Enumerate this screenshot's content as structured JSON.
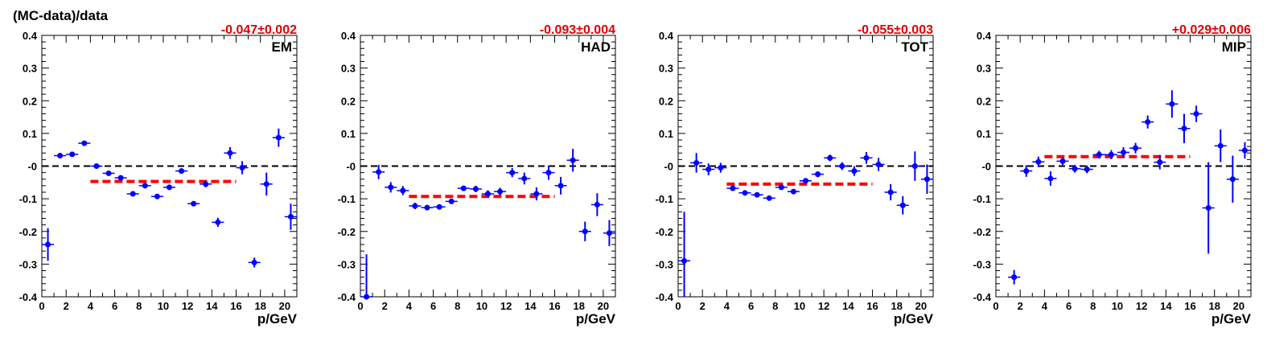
{
  "figure_ylabel": "(MC-data)/data",
  "chart_data": [
    {
      "type": "scatter",
      "panel_label": "EM",
      "fit_result": "-0.047±0.002",
      "xlabel": "p/GeV",
      "xlim": [
        0,
        21
      ],
      "ylim": [
        -0.4,
        0.4
      ],
      "x_ticks": [
        0,
        2,
        4,
        6,
        8,
        10,
        12,
        14,
        16,
        18,
        20
      ],
      "y_ticks": [
        -0.4,
        -0.3,
        -0.2,
        -0.1,
        0,
        0.1,
        0.2,
        0.3,
        0.4
      ],
      "y_tick_labels": [
        "-0.4",
        "-0.3",
        "-0.2",
        "-0.1",
        "-0",
        "0.1",
        "0.2",
        "0.3",
        "0.4"
      ],
      "reference_line": 0,
      "fit_line": {
        "x": [
          4,
          16
        ],
        "y": -0.047
      },
      "points": [
        {
          "x": 0.5,
          "y": -0.24,
          "err": 0.05
        },
        {
          "x": 1.5,
          "y": 0.032,
          "err": 0.006
        },
        {
          "x": 2.5,
          "y": 0.036,
          "err": 0.005
        },
        {
          "x": 3.5,
          "y": 0.07,
          "err": 0.004
        },
        {
          "x": 4.5,
          "y": 0.0,
          "err": 0.003
        },
        {
          "x": 5.5,
          "y": -0.022,
          "err": 0.004
        },
        {
          "x": 6.5,
          "y": -0.036,
          "err": 0.004
        },
        {
          "x": 7.5,
          "y": -0.085,
          "err": 0.004
        },
        {
          "x": 8.5,
          "y": -0.06,
          "err": 0.004
        },
        {
          "x": 9.5,
          "y": -0.093,
          "err": 0.004
        },
        {
          "x": 10.5,
          "y": -0.065,
          "err": 0.005
        },
        {
          "x": 11.5,
          "y": -0.015,
          "err": 0.008
        },
        {
          "x": 12.5,
          "y": -0.115,
          "err": 0.008
        },
        {
          "x": 13.5,
          "y": -0.055,
          "err": 0.01
        },
        {
          "x": 14.5,
          "y": -0.172,
          "err": 0.014
        },
        {
          "x": 15.5,
          "y": 0.04,
          "err": 0.018
        },
        {
          "x": 16.5,
          "y": -0.005,
          "err": 0.02
        },
        {
          "x": 17.5,
          "y": -0.295,
          "err": 0.015
        },
        {
          "x": 18.5,
          "y": -0.055,
          "err": 0.035
        },
        {
          "x": 19.5,
          "y": 0.087,
          "err": 0.028
        },
        {
          "x": 20.5,
          "y": -0.155,
          "err": 0.04
        }
      ]
    },
    {
      "type": "scatter",
      "panel_label": "HAD",
      "fit_result": "-0.093±0.004",
      "xlabel": "p/GeV",
      "xlim": [
        0,
        21
      ],
      "ylim": [
        -0.4,
        0.4
      ],
      "x_ticks": [
        0,
        2,
        4,
        6,
        8,
        10,
        12,
        14,
        16,
        18,
        20
      ],
      "y_ticks": [
        -0.4,
        -0.3,
        -0.2,
        -0.1,
        0,
        0.1,
        0.2,
        0.3,
        0.4
      ],
      "y_tick_labels": [
        "-0.4",
        "-0.3",
        "-0.2",
        "-0.1",
        "-0",
        "0.1",
        "0.2",
        "0.3",
        "0.4"
      ],
      "reference_line": 0,
      "fit_line": {
        "x": [
          4,
          16
        ],
        "y": -0.093
      },
      "points": [
        {
          "x": 0.5,
          "y": -0.4,
          "err": 0.13
        },
        {
          "x": 1.5,
          "y": -0.018,
          "err": 0.022
        },
        {
          "x": 2.5,
          "y": -0.065,
          "err": 0.016
        },
        {
          "x": 3.5,
          "y": -0.075,
          "err": 0.014
        },
        {
          "x": 4.5,
          "y": -0.122,
          "err": 0.01
        },
        {
          "x": 5.5,
          "y": -0.127,
          "err": 0.008
        },
        {
          "x": 6.5,
          "y": -0.125,
          "err": 0.008
        },
        {
          "x": 7.5,
          "y": -0.108,
          "err": 0.008
        },
        {
          "x": 8.5,
          "y": -0.068,
          "err": 0.008
        },
        {
          "x": 9.5,
          "y": -0.07,
          "err": 0.01
        },
        {
          "x": 10.5,
          "y": -0.085,
          "err": 0.011
        },
        {
          "x": 11.5,
          "y": -0.078,
          "err": 0.012
        },
        {
          "x": 12.5,
          "y": -0.02,
          "err": 0.014
        },
        {
          "x": 13.5,
          "y": -0.038,
          "err": 0.018
        },
        {
          "x": 14.5,
          "y": -0.085,
          "err": 0.02
        },
        {
          "x": 15.5,
          "y": -0.02,
          "err": 0.022
        },
        {
          "x": 16.5,
          "y": -0.06,
          "err": 0.027
        },
        {
          "x": 17.5,
          "y": 0.018,
          "err": 0.035
        },
        {
          "x": 18.5,
          "y": -0.2,
          "err": 0.03
        },
        {
          "x": 19.5,
          "y": -0.118,
          "err": 0.035
        },
        {
          "x": 20.5,
          "y": -0.205,
          "err": 0.04
        }
      ]
    },
    {
      "type": "scatter",
      "panel_label": "TOT",
      "fit_result": "-0.055±0.003",
      "xlabel": "p/GeV",
      "xlim": [
        0,
        21
      ],
      "ylim": [
        -0.4,
        0.4
      ],
      "x_ticks": [
        0,
        2,
        4,
        6,
        8,
        10,
        12,
        14,
        16,
        18,
        20
      ],
      "y_ticks": [
        -0.4,
        -0.3,
        -0.2,
        -0.1,
        0,
        0.1,
        0.2,
        0.3,
        0.4
      ],
      "y_tick_labels": [
        "-0.4",
        "-0.3",
        "-0.2",
        "-0.1",
        "-0",
        "0.1",
        "0.2",
        "0.3",
        "0.4"
      ],
      "reference_line": 0,
      "fit_line": {
        "x": [
          4,
          16
        ],
        "y": -0.055
      },
      "points": [
        {
          "x": 0.5,
          "y": -0.29,
          "err": 0.15
        },
        {
          "x": 1.5,
          "y": 0.01,
          "err": 0.03
        },
        {
          "x": 2.5,
          "y": -0.01,
          "err": 0.018
        },
        {
          "x": 3.5,
          "y": -0.005,
          "err": 0.015
        },
        {
          "x": 4.5,
          "y": -0.068,
          "err": 0.008
        },
        {
          "x": 5.5,
          "y": -0.082,
          "err": 0.006
        },
        {
          "x": 6.5,
          "y": -0.088,
          "err": 0.006
        },
        {
          "x": 7.5,
          "y": -0.098,
          "err": 0.005
        },
        {
          "x": 8.5,
          "y": -0.065,
          "err": 0.006
        },
        {
          "x": 9.5,
          "y": -0.078,
          "err": 0.007
        },
        {
          "x": 10.5,
          "y": -0.045,
          "err": 0.008
        },
        {
          "x": 11.5,
          "y": -0.025,
          "err": 0.009
        },
        {
          "x": 12.5,
          "y": 0.025,
          "err": 0.01
        },
        {
          "x": 13.5,
          "y": 0.0,
          "err": 0.012
        },
        {
          "x": 14.5,
          "y": -0.015,
          "err": 0.015
        },
        {
          "x": 15.5,
          "y": 0.025,
          "err": 0.018
        },
        {
          "x": 16.5,
          "y": 0.005,
          "err": 0.02
        },
        {
          "x": 17.5,
          "y": -0.08,
          "err": 0.025
        },
        {
          "x": 18.5,
          "y": -0.12,
          "err": 0.028
        },
        {
          "x": 19.5,
          "y": 0.0,
          "err": 0.045
        },
        {
          "x": 20.5,
          "y": -0.04,
          "err": 0.045
        }
      ]
    },
    {
      "type": "scatter",
      "panel_label": "MIP",
      "fit_result": "+0.029±0.006",
      "xlabel": "p/GeV",
      "xlim": [
        0,
        21
      ],
      "ylim": [
        -0.4,
        0.4
      ],
      "x_ticks": [
        0,
        2,
        4,
        6,
        8,
        10,
        12,
        14,
        16,
        18,
        20
      ],
      "y_ticks": [
        -0.4,
        -0.3,
        -0.2,
        -0.1,
        0,
        0.1,
        0.2,
        0.3,
        0.4
      ],
      "y_tick_labels": [
        "-0.4",
        "-0.3",
        "-0.2",
        "-0.1",
        "-0",
        "0.1",
        "0.2",
        "0.3",
        "0.4"
      ],
      "reference_line": 0,
      "fit_line": {
        "x": [
          4,
          16
        ],
        "y": 0.029
      },
      "points": [
        {
          "x": 1.5,
          "y": -0.34,
          "err": 0.022
        },
        {
          "x": 2.5,
          "y": -0.015,
          "err": 0.018
        },
        {
          "x": 3.5,
          "y": 0.013,
          "err": 0.016
        },
        {
          "x": 4.5,
          "y": -0.038,
          "err": 0.022
        },
        {
          "x": 5.5,
          "y": 0.015,
          "err": 0.012
        },
        {
          "x": 6.5,
          "y": -0.008,
          "err": 0.012
        },
        {
          "x": 7.5,
          "y": -0.01,
          "err": 0.012
        },
        {
          "x": 8.5,
          "y": 0.035,
          "err": 0.012
        },
        {
          "x": 9.5,
          "y": 0.035,
          "err": 0.014
        },
        {
          "x": 10.5,
          "y": 0.042,
          "err": 0.016
        },
        {
          "x": 11.5,
          "y": 0.055,
          "err": 0.016
        },
        {
          "x": 12.5,
          "y": 0.135,
          "err": 0.02
        },
        {
          "x": 13.5,
          "y": 0.012,
          "err": 0.022
        },
        {
          "x": 14.5,
          "y": 0.19,
          "err": 0.042
        },
        {
          "x": 15.5,
          "y": 0.115,
          "err": 0.045
        },
        {
          "x": 16.5,
          "y": 0.16,
          "err": 0.025
        },
        {
          "x": 17.5,
          "y": -0.128,
          "err": 0.14
        },
        {
          "x": 18.5,
          "y": 0.062,
          "err": 0.05
        },
        {
          "x": 19.5,
          "y": -0.04,
          "err": 0.072
        },
        {
          "x": 20.5,
          "y": 0.048,
          "err": 0.025
        }
      ]
    }
  ]
}
